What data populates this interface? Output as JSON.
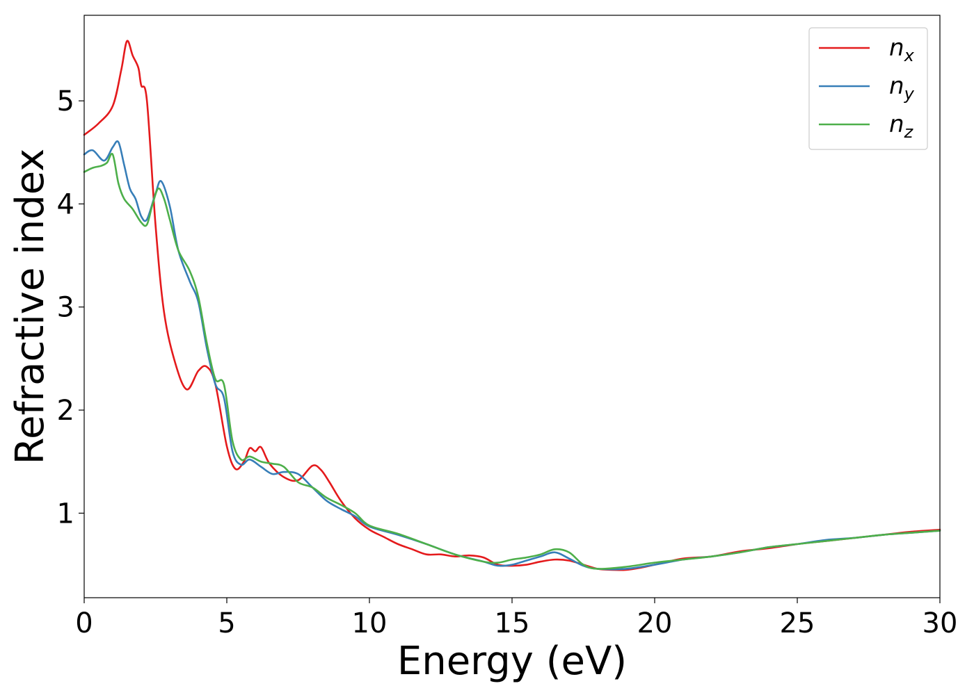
{
  "chart_data": {
    "type": "line",
    "title": "",
    "xlabel": "Energy (eV)",
    "ylabel": "Refractive index",
    "xlim": [
      0,
      30
    ],
    "ylim": [
      0.18,
      5.83
    ],
    "xticks": [
      0,
      5,
      10,
      15,
      20,
      25,
      30
    ],
    "yticks": [
      1,
      2,
      3,
      4,
      5
    ],
    "grid": false,
    "legend_position": "top-right",
    "series": [
      {
        "name": "n_x",
        "label_main": "n",
        "label_sub": "x",
        "color": "#e41a1c",
        "x": [
          0,
          0.5,
          1.0,
          1.3,
          1.5,
          1.7,
          1.9,
          2.0,
          2.2,
          2.5,
          2.8,
          3.2,
          3.6,
          4.0,
          4.3,
          4.6,
          5.0,
          5.3,
          5.6,
          5.8,
          6.0,
          6.2,
          6.5,
          7.0,
          7.5,
          8.0,
          8.3,
          8.6,
          9.0,
          9.5,
          10.0,
          10.5,
          11.0,
          11.5,
          12.0,
          12.5,
          13.0,
          13.5,
          14.0,
          14.5,
          15.0,
          15.5,
          16.0,
          16.5,
          17.0,
          17.5,
          18.0,
          18.5,
          19.0,
          19.5,
          20.0,
          21.0,
          22.0,
          23.0,
          24.0,
          25.0,
          26.0,
          27.0,
          28.0,
          29.0,
          30.0
        ],
        "y": [
          4.67,
          4.78,
          4.95,
          5.3,
          5.58,
          5.44,
          5.32,
          5.15,
          5.0,
          3.8,
          2.95,
          2.45,
          2.2,
          2.38,
          2.42,
          2.25,
          1.65,
          1.43,
          1.5,
          1.63,
          1.6,
          1.64,
          1.48,
          1.35,
          1.32,
          1.46,
          1.42,
          1.3,
          1.12,
          0.95,
          0.84,
          0.77,
          0.7,
          0.65,
          0.6,
          0.6,
          0.58,
          0.59,
          0.57,
          0.5,
          0.49,
          0.5,
          0.53,
          0.55,
          0.54,
          0.5,
          0.46,
          0.45,
          0.45,
          0.47,
          0.5,
          0.56,
          0.58,
          0.63,
          0.66,
          0.7,
          0.73,
          0.76,
          0.79,
          0.82,
          0.84
        ]
      },
      {
        "name": "n_y",
        "label_main": "n",
        "label_sub": "y",
        "color": "#377eb8",
        "x": [
          0,
          0.3,
          0.7,
          1.0,
          1.2,
          1.4,
          1.6,
          1.8,
          2.0,
          2.2,
          2.5,
          2.7,
          3.0,
          3.3,
          3.7,
          4.0,
          4.3,
          4.6,
          4.9,
          5.2,
          5.5,
          5.8,
          6.2,
          6.6,
          7.0,
          7.5,
          8.0,
          8.5,
          9.0,
          9.5,
          10.0,
          11.0,
          12.0,
          13.0,
          14.0,
          14.5,
          15.0,
          15.5,
          16.0,
          16.5,
          17.0,
          17.5,
          18.0,
          19.0,
          20.0,
          21.0,
          22.0,
          23.0,
          24.0,
          25.0,
          26.0,
          27.0,
          28.0,
          29.0,
          30.0
        ],
        "y": [
          4.48,
          4.52,
          4.42,
          4.55,
          4.6,
          4.38,
          4.15,
          4.05,
          3.88,
          3.85,
          4.1,
          4.22,
          3.98,
          3.55,
          3.25,
          3.05,
          2.6,
          2.25,
          2.12,
          1.6,
          1.47,
          1.52,
          1.45,
          1.38,
          1.4,
          1.38,
          1.25,
          1.12,
          1.04,
          0.97,
          0.87,
          0.79,
          0.7,
          0.6,
          0.53,
          0.49,
          0.5,
          0.54,
          0.58,
          0.62,
          0.56,
          0.49,
          0.46,
          0.46,
          0.5,
          0.55,
          0.58,
          0.62,
          0.67,
          0.7,
          0.74,
          0.76,
          0.79,
          0.81,
          0.83
        ]
      },
      {
        "name": "n_z",
        "label_main": "n",
        "label_sub": "z",
        "color": "#4daf4a",
        "x": [
          0,
          0.3,
          0.6,
          0.8,
          1.0,
          1.2,
          1.4,
          1.7,
          2.0,
          2.2,
          2.4,
          2.6,
          2.8,
          3.0,
          3.3,
          3.7,
          4.0,
          4.3,
          4.6,
          4.9,
          5.2,
          5.5,
          5.8,
          6.2,
          6.6,
          7.0,
          7.5,
          8.0,
          8.5,
          9.0,
          9.5,
          10.0,
          11.0,
          12.0,
          13.0,
          14.0,
          14.5,
          15.0,
          15.5,
          16.0,
          16.5,
          17.0,
          17.5,
          18.0,
          19.0,
          20.0,
          21.0,
          22.0,
          23.0,
          24.0,
          25.0,
          26.0,
          27.0,
          28.0,
          29.0,
          30.0
        ],
        "y": [
          4.31,
          4.35,
          4.37,
          4.4,
          4.48,
          4.2,
          4.05,
          3.95,
          3.82,
          3.8,
          4.0,
          4.15,
          4.05,
          3.85,
          3.55,
          3.35,
          3.1,
          2.65,
          2.3,
          2.25,
          1.7,
          1.52,
          1.55,
          1.5,
          1.48,
          1.45,
          1.3,
          1.25,
          1.15,
          1.08,
          1.0,
          0.88,
          0.8,
          0.7,
          0.6,
          0.53,
          0.52,
          0.55,
          0.57,
          0.6,
          0.65,
          0.62,
          0.5,
          0.46,
          0.48,
          0.52,
          0.55,
          0.58,
          0.62,
          0.67,
          0.7,
          0.73,
          0.76,
          0.79,
          0.81,
          0.83
        ]
      }
    ]
  }
}
